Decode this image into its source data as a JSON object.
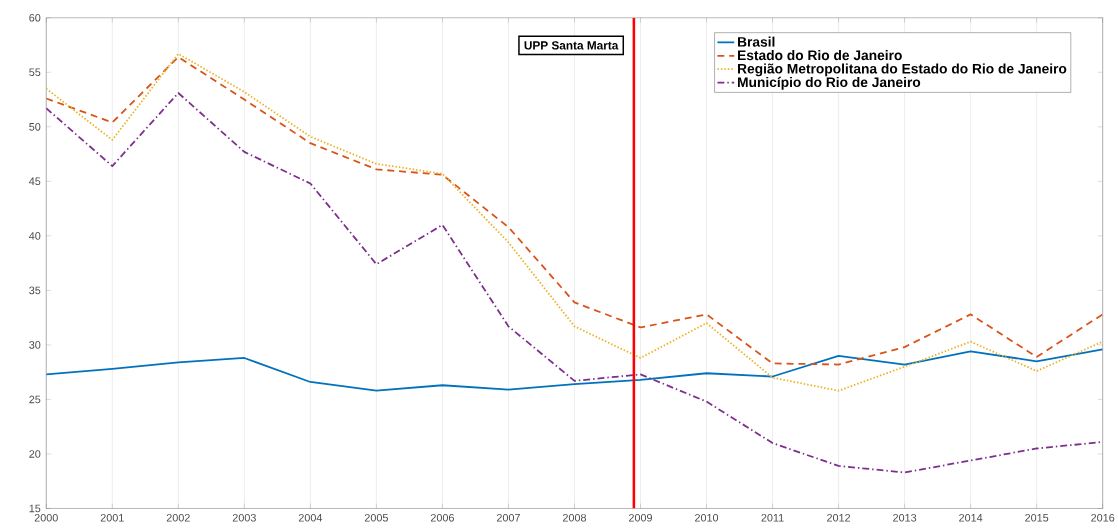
{
  "chart_data": {
    "type": "line",
    "x": [
      2000,
      2001,
      2002,
      2003,
      2004,
      2005,
      2006,
      2007,
      2008,
      2009,
      2010,
      2011,
      2012,
      2013,
      2014,
      2015,
      2016
    ],
    "series": [
      {
        "name": "Brasil",
        "color": "#0072bd",
        "line_style": "solid",
        "values": [
          27.3,
          27.8,
          28.4,
          28.8,
          26.6,
          25.8,
          26.3,
          25.9,
          26.4,
          26.8,
          27.4,
          27.1,
          29.0,
          28.2,
          29.4,
          28.5,
          29.6
        ]
      },
      {
        "name": "Estado do Rio de Janeiro",
        "color": "#d95319",
        "line_style": "dashed",
        "values": [
          52.6,
          50.4,
          56.4,
          52.5,
          48.5,
          46.1,
          45.6,
          40.8,
          33.9,
          31.6,
          32.8,
          28.3,
          28.2,
          29.8,
          32.8,
          28.9,
          32.8
        ]
      },
      {
        "name": "Região Metropolitana do Estado do Rio de Janeiro",
        "color": "#edb120",
        "line_style": "dotted",
        "values": [
          53.5,
          48.8,
          56.7,
          53.2,
          49.1,
          46.6,
          45.7,
          39.4,
          31.7,
          28.8,
          32.0,
          27.0,
          25.8,
          28.0,
          30.3,
          27.6,
          30.3
        ]
      },
      {
        "name": "Município do Rio de Janeiro",
        "color": "#7e2f8e",
        "line_style": "dashdot",
        "values": [
          51.7,
          46.4,
          53.1,
          47.7,
          44.8,
          37.4,
          41.0,
          31.7,
          26.7,
          27.3,
          24.8,
          21.0,
          18.9,
          18.3,
          19.4,
          20.5,
          21.1
        ]
      }
    ],
    "xlim": [
      2000,
      2016
    ],
    "xticks": [
      2000,
      2001,
      2002,
      2003,
      2004,
      2005,
      2006,
      2007,
      2008,
      2009,
      2010,
      2011,
      2012,
      2013,
      2014,
      2015,
      2016
    ],
    "ylim": [
      15,
      60
    ],
    "yticks": [
      15,
      20,
      25,
      30,
      35,
      40,
      45,
      50,
      55,
      60
    ],
    "grid": "x",
    "legend": "top right",
    "marker": "none",
    "ref_lines": [
      {
        "axis": "x",
        "value": 2008.9,
        "label": "UPP Santa Marta",
        "color": "#ff0000"
      }
    ]
  }
}
